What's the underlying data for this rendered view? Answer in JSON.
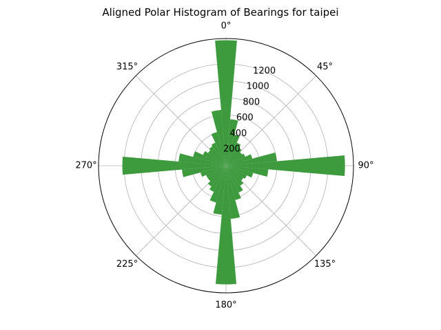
{
  "chart_data": {
    "type": "bar",
    "subtype": "polar-histogram",
    "title": "Aligned Polar Histogram of Bearings for taipei",
    "theta_direction": "clockwise",
    "theta_zero": "north",
    "theta_tick_labels": [
      "0°",
      "45°",
      "90°",
      "135°",
      "180°",
      "225°",
      "270°",
      "315°"
    ],
    "r_tick_labels": [
      "200",
      "400",
      "600",
      "800",
      "1000",
      "1200"
    ],
    "r_ticks": [
      200,
      400,
      600,
      800,
      1000,
      1200
    ],
    "rlim": [
      0,
      1500
    ],
    "bin_width_deg": 10,
    "bar_color": "#3d9a3d",
    "grid": true,
    "bearings_deg": [
      0,
      10,
      20,
      30,
      40,
      50,
      60,
      70,
      80,
      90,
      100,
      110,
      120,
      130,
      140,
      150,
      160,
      170,
      180,
      190,
      200,
      210,
      220,
      230,
      240,
      250,
      260,
      270,
      280,
      290,
      300,
      310,
      320,
      330,
      340,
      350
    ],
    "counts": [
      1480,
      550,
      380,
      300,
      260,
      230,
      250,
      320,
      600,
      1400,
      500,
      330,
      270,
      250,
      290,
      350,
      420,
      630,
      1400,
      580,
      450,
      340,
      300,
      260,
      260,
      310,
      520,
      1220,
      560,
      400,
      300,
      260,
      280,
      300,
      410,
      660
    ]
  }
}
